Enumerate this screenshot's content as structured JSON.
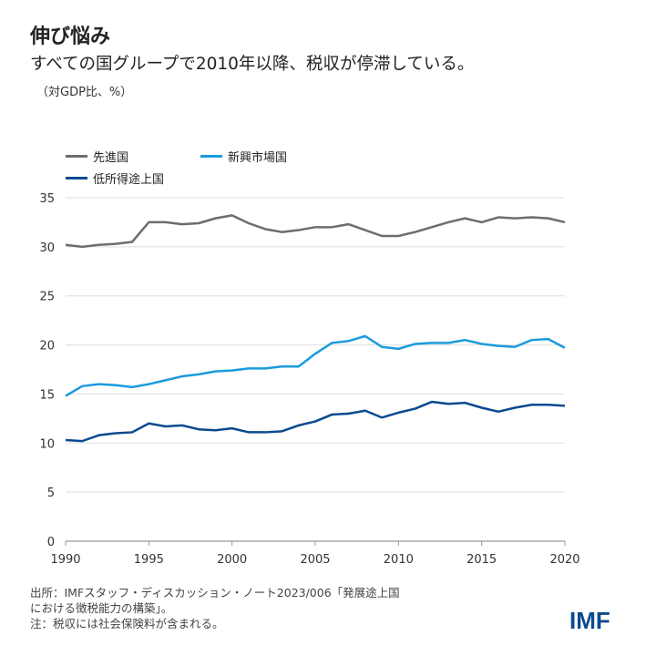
{
  "title": "伸び悩み",
  "subtitle": "すべての国グループで2010年以降、税収が停滞している。",
  "unit": "（対GDP比、%）",
  "notes": [
    "出所：IMFスタッフ・ディスカッション・ノート2023/006「発展途上国",
    "における徴税能力の構築」。",
    "注：税収には社会保険料が含まれる。"
  ],
  "logo": "IMF",
  "chart_data": {
    "type": "line",
    "xlim": [
      1990,
      2020
    ],
    "ylim": [
      0,
      35
    ],
    "xticks": [
      1990,
      1995,
      2000,
      2005,
      2010,
      2015,
      2020
    ],
    "yticks": [
      0,
      5,
      10,
      15,
      20,
      25,
      30,
      35
    ],
    "grid": "horizontal",
    "legend_position": "top-left",
    "x": [
      1990,
      1991,
      1992,
      1993,
      1994,
      1995,
      1996,
      1997,
      1998,
      1999,
      2000,
      2001,
      2002,
      2003,
      2004,
      2005,
      2006,
      2007,
      2008,
      2009,
      2010,
      2011,
      2012,
      2013,
      2014,
      2015,
      2016,
      2017,
      2018,
      2019,
      2020
    ],
    "series": [
      {
        "name": "先進国",
        "color": "#6d6d6d",
        "values": [
          30.2,
          30.0,
          30.2,
          30.3,
          30.5,
          32.5,
          32.5,
          32.3,
          32.4,
          32.9,
          33.2,
          32.4,
          31.8,
          31.5,
          31.7,
          32.0,
          32.0,
          32.3,
          31.7,
          31.1,
          31.1,
          31.5,
          32.0,
          32.5,
          32.9,
          32.5,
          33.0,
          32.9,
          33.0,
          32.9,
          32.5
        ]
      },
      {
        "name": "新興市場国",
        "color": "#1a9bdc",
        "values": [
          14.8,
          15.8,
          16.0,
          15.9,
          15.7,
          16.0,
          16.4,
          16.8,
          17.0,
          17.3,
          17.4,
          17.6,
          17.6,
          17.8,
          17.8,
          19.1,
          20.2,
          20.4,
          20.9,
          19.8,
          19.6,
          20.1,
          20.2,
          20.2,
          20.5,
          20.1,
          19.9,
          19.8,
          20.5,
          20.6,
          19.7
        ]
      },
      {
        "name": "低所得途上国",
        "color": "#0a4a8f",
        "values": [
          10.3,
          10.2,
          10.8,
          11.0,
          11.1,
          12.0,
          11.7,
          11.8,
          11.4,
          11.3,
          11.5,
          11.1,
          11.1,
          11.2,
          11.8,
          12.2,
          12.9,
          13.0,
          13.3,
          12.6,
          13.1,
          13.5,
          14.2,
          14.0,
          14.1,
          13.6,
          13.2,
          13.6,
          13.9,
          13.9,
          13.8
        ]
      }
    ]
  }
}
